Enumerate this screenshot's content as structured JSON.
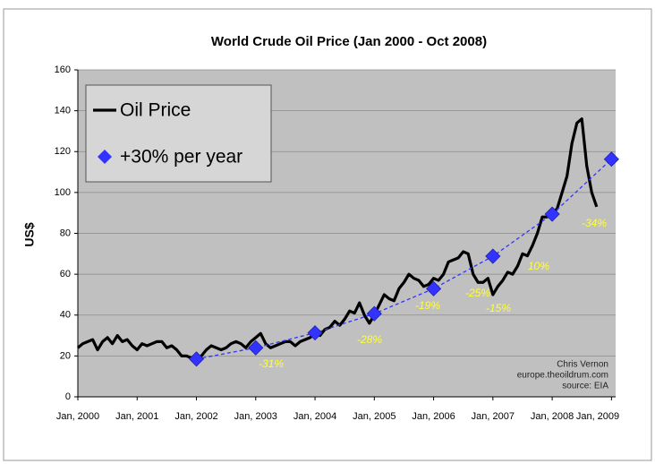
{
  "chart_data": {
    "type": "line",
    "title": "World Crude Oil Price (Jan 2000 - Oct 2008)",
    "y_label": "US$",
    "xlim": [
      2000,
      2009.07
    ],
    "xticks": [
      {
        "value": 2000,
        "label": "Jan, 2000"
      },
      {
        "value": 2001,
        "label": "Jan, 2001"
      },
      {
        "value": 2002,
        "label": "Jan, 2002"
      },
      {
        "value": 2003,
        "label": "Jan, 2003"
      },
      {
        "value": 2004,
        "label": "Jan, 2004"
      },
      {
        "value": 2005,
        "label": "Jan, 2005"
      },
      {
        "value": 2006,
        "label": "Jan, 2006"
      },
      {
        "value": 2007,
        "label": "Jan, 2007"
      },
      {
        "value": 2008,
        "label": "Jan, 2008"
      },
      {
        "value": 2009,
        "label": "Jan, 2009"
      }
    ],
    "ylim": [
      0,
      160
    ],
    "yticks": [
      0,
      20,
      40,
      60,
      80,
      100,
      120,
      140,
      160
    ],
    "grid": true,
    "legend": "upper left",
    "series": [
      {
        "name": "Oil Price",
        "color": "#000000",
        "line_style": "solid",
        "x": [
          2000,
          2000.083,
          2000.167,
          2000.25,
          2000.333,
          2000.417,
          2000.5,
          2000.583,
          2000.667,
          2000.75,
          2000.833,
          2000.917,
          2001,
          2001.083,
          2001.167,
          2001.25,
          2001.333,
          2001.417,
          2001.5,
          2001.583,
          2001.667,
          2001.75,
          2001.833,
          2001.917,
          2002,
          2002.083,
          2002.167,
          2002.25,
          2002.333,
          2002.417,
          2002.5,
          2002.583,
          2002.667,
          2002.75,
          2002.833,
          2002.917,
          2003,
          2003.083,
          2003.167,
          2003.25,
          2003.333,
          2003.417,
          2003.5,
          2003.583,
          2003.667,
          2003.75,
          2003.833,
          2003.917,
          2004,
          2004.083,
          2004.167,
          2004.25,
          2004.333,
          2004.417,
          2004.5,
          2004.583,
          2004.667,
          2004.75,
          2004.833,
          2004.917,
          2005,
          2005.083,
          2005.167,
          2005.25,
          2005.333,
          2005.417,
          2005.5,
          2005.583,
          2005.667,
          2005.75,
          2005.833,
          2005.917,
          2006,
          2006.083,
          2006.167,
          2006.25,
          2006.333,
          2006.417,
          2006.5,
          2006.583,
          2006.667,
          2006.75,
          2006.833,
          2006.917,
          2007,
          2007.083,
          2007.167,
          2007.25,
          2007.333,
          2007.417,
          2007.5,
          2007.583,
          2007.667,
          2007.75,
          2007.833,
          2007.917,
          2008,
          2008.083,
          2008.167,
          2008.25,
          2008.333,
          2008.417,
          2008.5,
          2008.583,
          2008.667,
          2008.75
        ],
        "values": [
          24,
          26,
          27,
          28,
          23,
          27,
          29,
          26,
          30,
          27,
          28,
          25,
          23,
          26,
          25,
          26,
          27,
          27,
          24,
          25,
          23,
          20,
          20,
          19,
          18,
          20,
          23,
          25,
          24,
          23,
          24,
          26,
          27,
          26,
          24,
          27,
          29,
          31,
          26,
          24,
          25,
          26,
          27,
          27,
          25,
          27,
          28,
          29,
          31,
          30,
          33,
          34,
          37,
          35,
          38,
          42,
          41,
          46,
          40,
          36,
          40,
          45,
          50,
          48,
          47,
          53,
          56,
          60,
          58,
          57,
          54,
          55,
          58,
          57,
          60,
          66,
          67,
          68,
          71,
          70,
          60,
          56,
          56,
          58,
          50,
          54,
          57,
          61,
          60,
          64,
          70,
          69,
          74,
          80,
          88,
          88,
          90,
          92,
          100,
          108,
          124,
          134,
          136,
          113,
          100,
          93
        ]
      },
      {
        "name": "+30% per year",
        "color": "#3333ff",
        "line_style": "dashed",
        "marker": "diamond",
        "x": [
          2002,
          2003,
          2004,
          2005,
          2006,
          2007,
          2008,
          2009
        ],
        "values": [
          18.5,
          24,
          31.3,
          40.7,
          52.9,
          68.8,
          89.4,
          116.3
        ]
      }
    ],
    "annotations": [
      "-31%",
      "-28%",
      "-19%",
      "-25%",
      "-15%",
      "10%",
      "-34%"
    ],
    "credits": [
      "Chris Vernon",
      "europe.theoildrum.com",
      "source: EIA"
    ]
  }
}
